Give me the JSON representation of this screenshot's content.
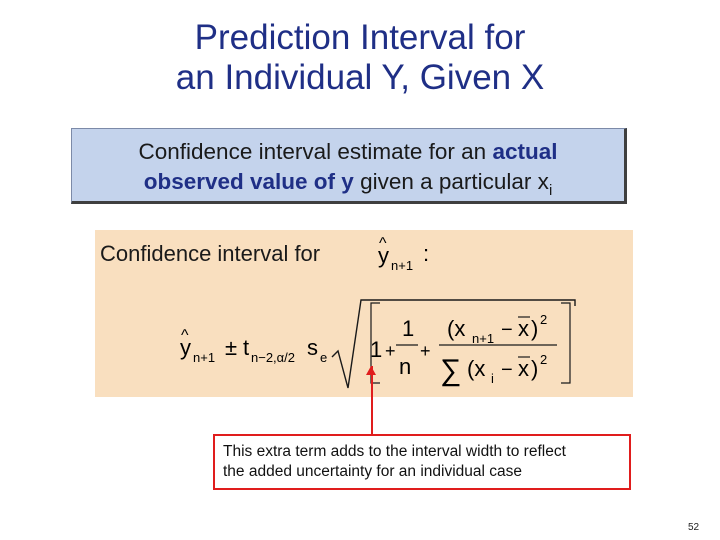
{
  "slide": {
    "title_line1": "Prediction Interval for",
    "title_line2": "an Individual Y, Given X"
  },
  "definition": {
    "part1": "Confidence interval estimate for an",
    "highlight_a": "actual",
    "highlight_b": "observed value of y",
    "part2": "given a particular x",
    "part2_subscript": "i"
  },
  "formula": {
    "label": "Confidence interval for",
    "colon": ":",
    "yhat_var": "y",
    "yhat_sub": "n+1",
    "pm": "±",
    "t_var": "t",
    "t_sub": "n−2,α/2",
    "s_var": "s",
    "s_sub": "e",
    "one": "1",
    "plus": "+",
    "frac_num": "1",
    "frac_den": "n",
    "xn1": "(x",
    "xn1_sub": "n+1",
    "minus": "−",
    "xbar": "x",
    "close_sq": ")",
    "exp2": "2",
    "sigma": "∑",
    "xi": "(x",
    "xi_sub": "i"
  },
  "callout": {
    "line1": "This extra term adds to the interval width to reflect",
    "line2": "the added uncertainty for an individual case"
  },
  "page_number": "52",
  "colors": {
    "title": "#1f2f86",
    "definition_box": "#c4d3ec",
    "formula_box": "#f9dfbf",
    "callout_accent": "#e01d1d"
  }
}
